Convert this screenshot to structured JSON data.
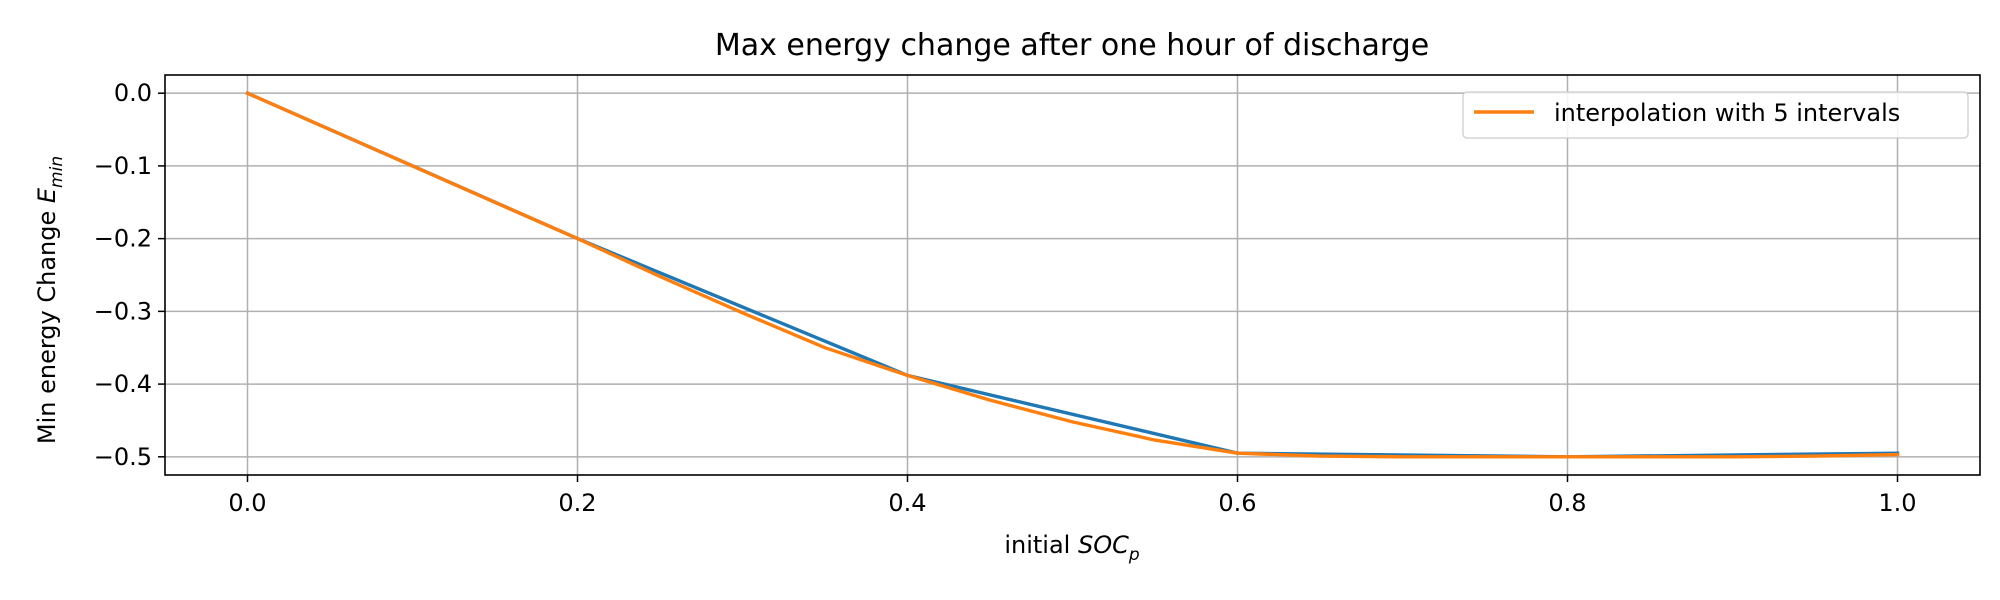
{
  "chart_data": {
    "type": "line",
    "title": "Max energy change after one hour of discharge",
    "xlabel": {
      "prefix": "initial ",
      "var": "SOC",
      "sub": "p"
    },
    "ylabel": {
      "prefix": "Min energy Change ",
      "var": "E",
      "sub": "min"
    },
    "xlim": [
      -0.05,
      1.05
    ],
    "ylim": [
      -0.525,
      0.025
    ],
    "xticks": [
      0.0,
      0.2,
      0.4,
      0.6,
      0.8,
      1.0
    ],
    "xtick_labels": [
      "0.0",
      "0.2",
      "0.4",
      "0.6",
      "0.8",
      "1.0"
    ],
    "yticks": [
      0.0,
      -0.1,
      -0.2,
      -0.3,
      -0.4,
      -0.5
    ],
    "ytick_labels": [
      "0.0",
      "−0.1",
      "−0.2",
      "−0.3",
      "−0.4",
      "−0.5"
    ],
    "grid": true,
    "legend_position": "upper right",
    "series": [
      {
        "color": "#1f77b4",
        "x": [
          0.0,
          0.2,
          0.4,
          0.6,
          0.8,
          1.0
        ],
        "y": [
          0.0,
          -0.2,
          -0.388,
          -0.495,
          -0.5,
          -0.495
        ]
      },
      {
        "name": "interpolation with 5 intervals",
        "color": "#ff7f0e",
        "x": [
          0.0,
          0.05,
          0.1,
          0.15,
          0.2,
          0.25,
          0.3,
          0.35,
          0.4,
          0.45,
          0.5,
          0.55,
          0.6,
          0.65,
          0.7,
          0.75,
          0.8,
          0.85,
          0.9,
          0.95,
          1.0
        ],
        "y": [
          0.0,
          -0.05,
          -0.1,
          -0.15,
          -0.2,
          -0.252,
          -0.302,
          -0.35,
          -0.388,
          -0.422,
          -0.452,
          -0.477,
          -0.495,
          -0.499,
          -0.5,
          -0.5,
          -0.5,
          -0.5,
          -0.5,
          -0.499,
          -0.497
        ]
      }
    ]
  }
}
